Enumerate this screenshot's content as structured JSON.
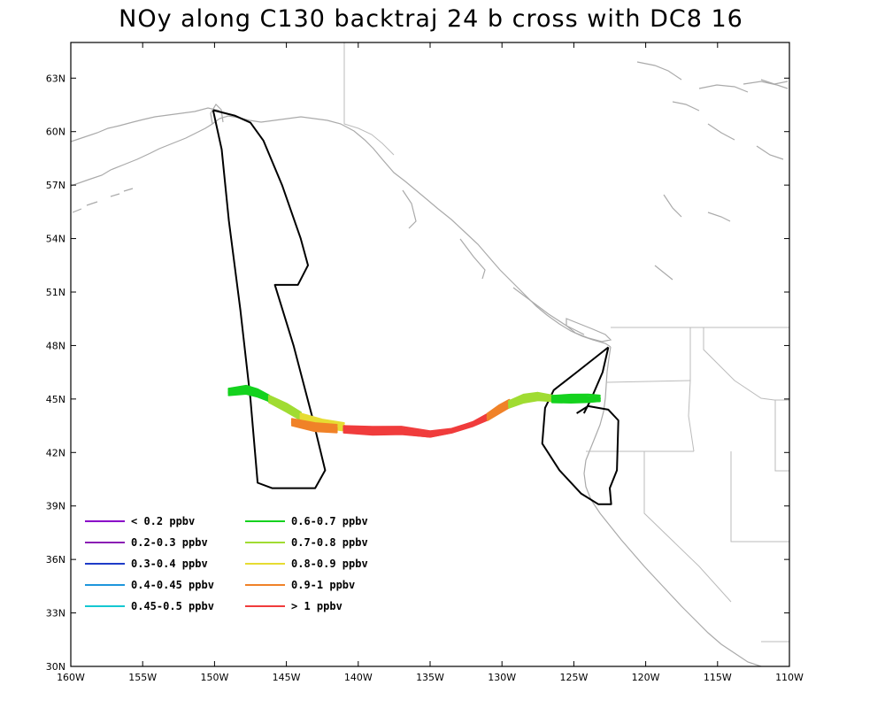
{
  "title": "NOy along C130 backtraj 24 b cross with DC8 16",
  "map": {
    "lon_range": [
      -160,
      -110
    ],
    "lat_range": [
      30,
      65
    ],
    "lat_ticks": [
      {
        "value": 30,
        "label": "30N"
      },
      {
        "value": 33,
        "label": "33N"
      },
      {
        "value": 36,
        "label": "36N"
      },
      {
        "value": 39,
        "label": "39N"
      },
      {
        "value": 42,
        "label": "42N"
      },
      {
        "value": 45,
        "label": "45N"
      },
      {
        "value": 48,
        "label": "48N"
      },
      {
        "value": 51,
        "label": "51N"
      },
      {
        "value": 54,
        "label": "54N"
      },
      {
        "value": 57,
        "label": "57N"
      },
      {
        "value": 60,
        "label": "60N"
      },
      {
        "value": 63,
        "label": "63N"
      }
    ],
    "lon_ticks": [
      {
        "value": -160,
        "label": "160W"
      },
      {
        "value": -155,
        "label": "155W"
      },
      {
        "value": -150,
        "label": "150W"
      },
      {
        "value": -145,
        "label": "145W"
      },
      {
        "value": -140,
        "label": "140W"
      },
      {
        "value": -135,
        "label": "135W"
      },
      {
        "value": -130,
        "label": "130W"
      },
      {
        "value": -125,
        "label": "125W"
      },
      {
        "value": -120,
        "label": "120W"
      },
      {
        "value": -115,
        "label": "115W"
      },
      {
        "value": -110,
        "label": "110W"
      }
    ],
    "coast_color": "#aaaaaa",
    "boundary_color": "#bbbbbb"
  },
  "legend": {
    "items": [
      {
        "label": "< 0.2 ppbv",
        "color": "#8a00c8"
      },
      {
        "label": "0.2-0.3 ppbv",
        "color": "#8a1eb4"
      },
      {
        "label": "0.3-0.4 ppbv",
        "color": "#1e3cc8"
      },
      {
        "label": "0.4-0.45 ppbv",
        "color": "#1e96dc"
      },
      {
        "label": "0.45-0.5 ppbv",
        "color": "#14c8d2"
      },
      {
        "label": "0.6-0.7 ppbv",
        "color": "#14d21e"
      },
      {
        "label": "0.7-0.8 ppbv",
        "color": "#a0dc32"
      },
      {
        "label": "0.8-0.9 ppbv",
        "color": "#e6dc32"
      },
      {
        "label": "0.9-1 ppbv",
        "color": "#f08228"
      },
      {
        "label": "> 1 ppbv",
        "color": "#f03c3c"
      }
    ]
  },
  "flight_track": {
    "color": "#000000",
    "points": [
      [
        -150.1,
        61.2
      ],
      [
        -149.5,
        59.0
      ],
      [
        -149.0,
        55.0
      ],
      [
        -148.2,
        50.0
      ],
      [
        -147.5,
        45.0
      ],
      [
        -147.0,
        40.3
      ],
      [
        -146.0,
        40.0
      ],
      [
        -143.0,
        40.0
      ],
      [
        -142.3,
        41.0
      ],
      [
        -143.2,
        44.0
      ],
      [
        -144.5,
        48.0
      ],
      [
        -145.8,
        51.4
      ],
      [
        -144.2,
        51.4
      ],
      [
        -143.5,
        52.5
      ],
      [
        -144.0,
        54.0
      ],
      [
        -145.3,
        57.0
      ],
      [
        -146.6,
        59.5
      ],
      [
        -147.5,
        60.5
      ],
      [
        -148.6,
        60.9
      ],
      [
        -150.1,
        61.2
      ]
    ],
    "points2": [
      [
        -122.6,
        47.9
      ],
      [
        -124.8,
        46.5
      ],
      [
        -126.4,
        45.5
      ],
      [
        -127.0,
        44.5
      ],
      [
        -127.2,
        42.5
      ],
      [
        -126.0,
        41.0
      ],
      [
        -124.5,
        39.7
      ],
      [
        -123.3,
        39.1
      ],
      [
        -122.4,
        39.1
      ],
      [
        -122.5,
        40.0
      ],
      [
        -122.0,
        41.0
      ],
      [
        -121.9,
        43.8
      ],
      [
        -122.6,
        44.4
      ],
      [
        -124.0,
        44.6
      ],
      [
        -124.8,
        44.2
      ]
    ],
    "points3": [
      [
        -124.3,
        44.2
      ],
      [
        -123.8,
        45.0
      ],
      [
        -123.0,
        46.5
      ],
      [
        -122.6,
        47.9
      ]
    ]
  },
  "trajectory": {
    "segments": [
      {
        "color": "#14d21e",
        "lon": [
          -149.0,
          -147.8,
          -147.0,
          -146.2
        ],
        "lat": [
          45.4,
          45.5,
          45.3,
          45.0
        ]
      },
      {
        "color": "#a0dc32",
        "lon": [
          -146.2,
          -145.0,
          -144.0
        ],
        "lat": [
          45.0,
          44.5,
          44.0
        ]
      },
      {
        "color": "#e6dc32",
        "lon": [
          -144.0,
          -142.5,
          -141.0
        ],
        "lat": [
          44.0,
          43.6,
          43.4
        ]
      },
      {
        "color": "#f08228",
        "lon": [
          -144.6,
          -143.0,
          -141.5
        ],
        "lat": [
          43.7,
          43.4,
          43.3
        ]
      },
      {
        "color": "#f03c3c",
        "lon": [
          -141.0,
          -139.0,
          -137.0,
          -135.0,
          -133.5,
          -132.0,
          -131.0
        ],
        "lat": [
          43.3,
          43.2,
          43.2,
          43.0,
          43.2,
          43.6,
          44.0
        ]
      },
      {
        "color": "#f08228",
        "lon": [
          -131.0,
          -130.2,
          -129.5
        ],
        "lat": [
          44.0,
          44.4,
          44.7
        ]
      },
      {
        "color": "#a0dc32",
        "lon": [
          -129.5,
          -128.5,
          -127.5,
          -126.5
        ],
        "lat": [
          44.7,
          45.0,
          45.1,
          45.0
        ]
      },
      {
        "color": "#14d21e",
        "lon": [
          -126.5,
          -125.2,
          -124.0,
          -123.2
        ],
        "lat": [
          45.0,
          45.0,
          45.0,
          45.0
        ]
      }
    ]
  }
}
